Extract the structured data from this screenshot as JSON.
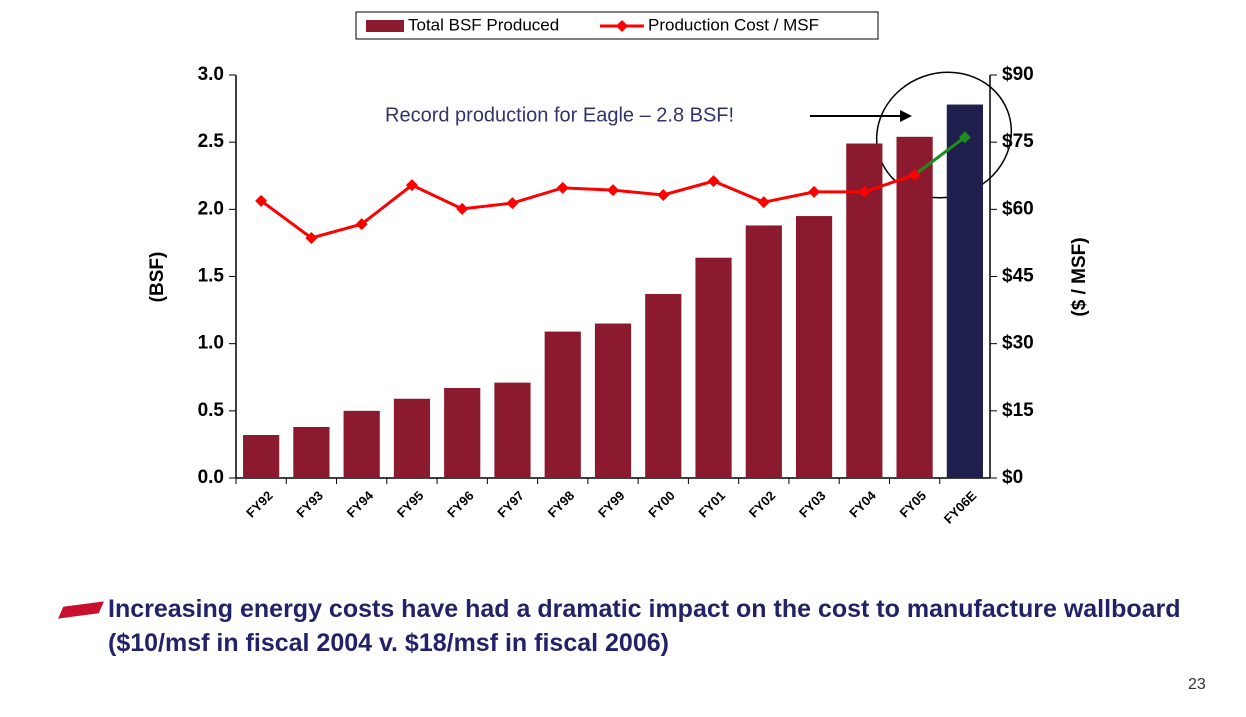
{
  "chart_data": {
    "type": "bar_line",
    "categories": [
      "FY92",
      "FY93",
      "FY94",
      "FY95",
      "FY96",
      "FY97",
      "FY98",
      "FY99",
      "FY00",
      "FY01",
      "FY02",
      "FY03",
      "FY04",
      "FY05",
      "FY06E"
    ],
    "series": [
      {
        "name": "Total BSF Produced",
        "type": "bar",
        "color": "#8b1a2e",
        "last_color": "#1f1f4d",
        "values": [
          0.32,
          0.38,
          0.5,
          0.59,
          0.67,
          0.71,
          1.09,
          1.15,
          1.37,
          1.64,
          1.88,
          1.95,
          2.49,
          2.54,
          2.78
        ]
      },
      {
        "name": "Production Cost / MSF",
        "type": "line",
        "axis": "y2",
        "color": "#ff0000",
        "last_color": "#1e8c1e",
        "values": [
          61.9,
          53.6,
          56.7,
          65.4,
          60.1,
          61.4,
          64.8,
          64.3,
          63.2,
          66.3,
          61.6,
          63.9,
          63.9,
          67.7,
          76.1
        ]
      }
    ],
    "ylabel": "(BSF)",
    "y2label": "($ / MSF)",
    "ylim": [
      0,
      3
    ],
    "yticks": [
      {
        "value": 0,
        "label": "0.0"
      },
      {
        "value": 0.5,
        "label": "0.5"
      },
      {
        "value": 1,
        "label": "1.0"
      },
      {
        "value": 1.5,
        "label": "1.5"
      },
      {
        "value": 2,
        "label": "2.0"
      },
      {
        "value": 2.5,
        "label": "2.5"
      },
      {
        "value": 3,
        "label": "3.0"
      }
    ],
    "y2lim": [
      0,
      90
    ],
    "y2ticks": [
      {
        "value": 0,
        "label": "$0"
      },
      {
        "value": 15,
        "label": "$15"
      },
      {
        "value": 30,
        "label": "$30"
      },
      {
        "value": 45,
        "label": "$45"
      },
      {
        "value": 60,
        "label": "$60"
      },
      {
        "value": 75,
        "label": "$75"
      },
      {
        "value": 90,
        "label": "$90"
      }
    ],
    "annotation": "Record production for Eagle – 2.8 BSF!"
  },
  "bullet": "Increasing energy costs have had a dramatic impact on the cost to manufacture wallboard ($10/msf in fiscal 2004 v. $18/msf in fiscal 2006)",
  "page_number": "23"
}
